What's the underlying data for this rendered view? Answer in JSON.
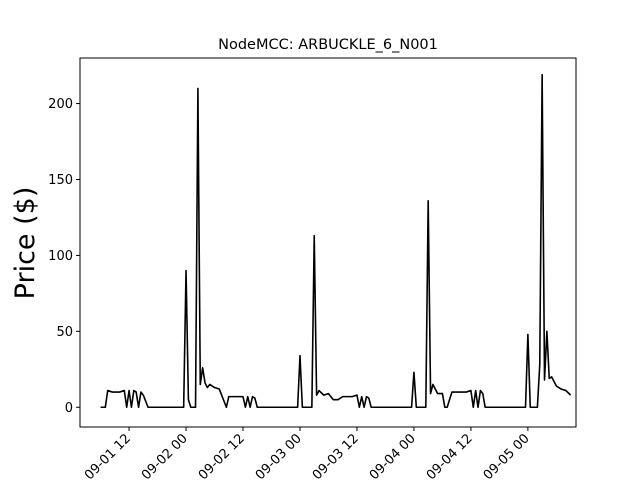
{
  "chart_data": {
    "type": "line",
    "title": "NodeMCC: ARBUCKLE_6_N001",
    "xlabel": "",
    "ylabel": "Price ($)",
    "ylim": [
      -13,
      230
    ],
    "xlim": [
      "2022-09-01 01:40",
      "2022-09-05 10:08"
    ],
    "xtick_labels": [
      "09-01 12",
      "09-02 00",
      "09-02 12",
      "09-03 00",
      "09-03 12",
      "09-04 00",
      "09-04 12",
      "09-05 00"
    ],
    "xtick_values": [
      "2022-09-01 12:00",
      "2022-09-02 00:00",
      "2022-09-02 12:00",
      "2022-09-03 00:00",
      "2022-09-03 12:00",
      "2022-09-04 00:00",
      "2022-09-04 12:00",
      "2022-09-05 00:00"
    ],
    "ytick_values": [
      0,
      50,
      100,
      150,
      200
    ],
    "ytick_labels": [
      "0",
      "50",
      "100",
      "150",
      "200"
    ],
    "grid": false,
    "legend": "none",
    "series": [
      {
        "color": "#000000",
        "x": [
          "2022-09-01 06:00",
          "2022-09-01 07:00",
          "2022-09-01 07:30",
          "2022-09-01 08:30",
          "2022-09-01 10:00",
          "2022-09-01 11:00",
          "2022-09-01 11:30",
          "2022-09-01 12:00",
          "2022-09-01 12:30",
          "2022-09-01 13:00",
          "2022-09-01 13:30",
          "2022-09-01 14:00",
          "2022-09-01 14:30",
          "2022-09-01 15:00",
          "2022-09-01 16:00",
          "2022-09-01 20:00",
          "2022-09-01 23:30",
          "2022-09-02 00:00",
          "2022-09-02 00:30",
          "2022-09-02 01:00",
          "2022-09-02 02:00",
          "2022-09-02 02:30",
          "2022-09-02 03:00",
          "2022-09-02 03:30",
          "2022-09-02 04:00",
          "2022-09-02 04:30",
          "2022-09-02 05:00",
          "2022-09-02 06:00",
          "2022-09-02 07:00",
          "2022-09-02 08:30",
          "2022-09-02 09:00",
          "2022-09-02 10:00",
          "2022-09-02 12:00",
          "2022-09-02 12:30",
          "2022-09-02 13:00",
          "2022-09-02 13:30",
          "2022-09-02 14:00",
          "2022-09-02 14:30",
          "2022-09-02 15:00",
          "2022-09-02 16:00",
          "2022-09-02 20:00",
          "2022-09-02 23:30",
          "2022-09-03 00:00",
          "2022-09-03 00:30",
          "2022-09-03 01:00",
          "2022-09-03 02:30",
          "2022-09-03 03:00",
          "2022-09-03 03:30",
          "2022-09-03 04:00",
          "2022-09-03 05:00",
          "2022-09-03 06:00",
          "2022-09-03 07:00",
          "2022-09-03 08:00",
          "2022-09-03 09:00",
          "2022-09-03 10:00",
          "2022-09-03 11:00",
          "2022-09-03 12:00",
          "2022-09-03 12:30",
          "2022-09-03 13:00",
          "2022-09-03 13:30",
          "2022-09-03 14:00",
          "2022-09-03 14:30",
          "2022-09-03 15:00",
          "2022-09-03 16:00",
          "2022-09-03 20:00",
          "2022-09-03 23:30",
          "2022-09-04 00:00",
          "2022-09-04 00:30",
          "2022-09-04 01:00",
          "2022-09-04 02:30",
          "2022-09-04 03:00",
          "2022-09-04 03:30",
          "2022-09-04 04:00",
          "2022-09-04 05:00",
          "2022-09-04 06:00",
          "2022-09-04 06:30",
          "2022-09-04 07:00",
          "2022-09-04 08:00",
          "2022-09-04 09:00",
          "2022-09-04 10:00",
          "2022-09-04 11:00",
          "2022-09-04 12:00",
          "2022-09-04 12:30",
          "2022-09-04 13:00",
          "2022-09-04 13:30",
          "2022-09-04 14:00",
          "2022-09-04 14:30",
          "2022-09-04 15:00",
          "2022-09-04 16:00",
          "2022-09-04 20:00",
          "2022-09-04 23:30",
          "2022-09-05 00:00",
          "2022-09-05 00:30",
          "2022-09-05 02:00",
          "2022-09-05 02:30",
          "2022-09-05 03:00",
          "2022-09-05 03:30",
          "2022-09-05 04:00",
          "2022-09-05 04:30",
          "2022-09-05 05:00",
          "2022-09-05 06:00",
          "2022-09-05 07:00",
          "2022-09-05 08:00",
          "2022-09-05 09:00"
        ],
        "y": [
          0,
          0,
          11,
          10,
          10,
          11,
          0,
          11,
          0,
          11,
          10,
          0,
          10,
          8,
          0,
          0,
          0,
          90,
          5,
          0,
          0,
          210,
          15,
          26,
          16,
          13,
          15,
          13,
          12,
          0,
          7,
          7,
          7,
          0,
          7,
          0,
          7,
          6,
          0,
          0,
          0,
          0,
          34,
          0,
          0,
          0,
          113,
          8,
          11,
          8,
          9,
          5,
          5,
          7,
          7,
          7,
          8,
          0,
          7,
          0,
          7,
          6,
          0,
          0,
          0,
          0,
          23,
          0,
          0,
          0,
          136,
          9,
          15,
          9,
          9,
          0,
          0,
          10,
          10,
          10,
          10,
          11,
          0,
          11,
          0,
          11,
          9,
          0,
          0,
          0,
          0,
          48,
          0,
          0,
          28,
          219,
          18,
          50,
          19,
          20,
          14,
          12,
          11,
          8
        ]
      }
    ]
  }
}
